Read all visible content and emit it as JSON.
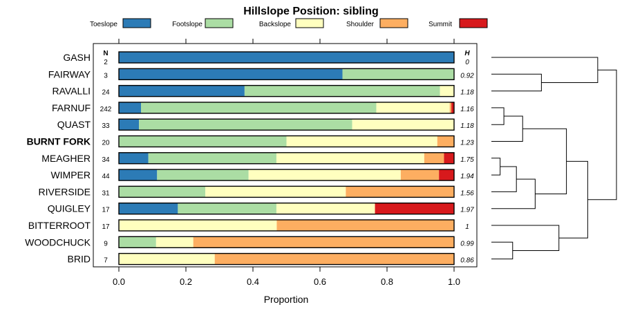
{
  "chart_data": {
    "type": "bar",
    "orientation": "horizontal",
    "stacked": true,
    "title": "Hillslope Position: sibling",
    "xlabel": "Proportion",
    "ylabel": "",
    "xlim": [
      0,
      1
    ],
    "xticks": [
      "0.0",
      "0.2",
      "0.4",
      "0.6",
      "0.8",
      "1.0"
    ],
    "n_header": "N",
    "h_header": "H",
    "highlight": "BURNT FORK",
    "legend": [
      {
        "name": "Toeslope",
        "color": "#2c7bb6"
      },
      {
        "name": "Footslope",
        "color": "#abdda4"
      },
      {
        "name": "Backslope",
        "color": "#ffffbf"
      },
      {
        "name": "Shoulder",
        "color": "#fdae61"
      },
      {
        "name": "Summit",
        "color": "#d7191c"
      }
    ],
    "categories": [
      "GASH",
      "FAIRWAY",
      "RAVALLI",
      "FARNUF",
      "QUAST",
      "BURNT FORK",
      "MEAGHER",
      "WIMPER",
      "RIVERSIDE",
      "QUIGLEY",
      "BITTERROOT",
      "WOODCHUCK",
      "BRID"
    ],
    "n": [
      "2",
      "3",
      "24",
      "242",
      "33",
      "20",
      "34",
      "44",
      "31",
      "17",
      "17",
      "9",
      "7"
    ],
    "h": [
      "0",
      "0.92",
      "1.18",
      "1.16",
      "1.18",
      "1.23",
      "1.75",
      "1.94",
      "1.56",
      "1.97",
      "1",
      "0.99",
      "0.86"
    ],
    "series": [
      {
        "name": "Toeslope",
        "values": [
          1.0,
          0.667,
          0.375,
          0.066,
          0.06,
          0.0,
          0.088,
          0.114,
          0.0,
          0.176,
          0.0,
          0.0,
          0.0
        ]
      },
      {
        "name": "Footslope",
        "values": [
          0.0,
          0.333,
          0.583,
          0.702,
          0.636,
          0.5,
          0.382,
          0.273,
          0.258,
          0.294,
          0.0,
          0.111,
          0.0
        ]
      },
      {
        "name": "Backslope",
        "values": [
          0.0,
          0.0,
          0.042,
          0.219,
          0.304,
          0.45,
          0.441,
          0.454,
          0.419,
          0.294,
          0.471,
          0.111,
          0.286
        ]
      },
      {
        "name": "Shoulder",
        "values": [
          0.0,
          0.0,
          0.0,
          0.005,
          0.0,
          0.05,
          0.059,
          0.114,
          0.323,
          0.0,
          0.529,
          0.778,
          0.714
        ]
      },
      {
        "name": "Summit",
        "values": [
          0.0,
          0.0,
          0.0,
          0.008,
          0.0,
          0.0,
          0.03,
          0.045,
          0.0,
          0.236,
          0.0,
          0.0,
          0.0
        ]
      }
    ],
    "dendrogram": {
      "leaf_order": [
        "GASH",
        "FAIRWAY",
        "RAVALLI",
        "FARNUF",
        "QUAST",
        "BURNT FORK",
        "MEAGHER",
        "WIMPER",
        "RIVERSIDE",
        "QUIGLEY",
        "BITTERROOT",
        "WOODCHUCK",
        "BRID"
      ],
      "merges": [
        {
          "a": "L1",
          "b": "L2",
          "height": 0.4
        },
        {
          "a": "L0",
          "b": "M0",
          "height": 0.85
        },
        {
          "a": "L3",
          "b": "L4",
          "height": 0.1
        },
        {
          "a": "M2",
          "b": "L5",
          "height": 0.25
        },
        {
          "a": "L6",
          "b": "L7",
          "height": 0.07
        },
        {
          "a": "M4",
          "b": "L8",
          "height": 0.2
        },
        {
          "a": "M5",
          "b": "L9",
          "height": 0.35
        },
        {
          "a": "M3",
          "b": "M6",
          "height": 0.6
        },
        {
          "a": "L11",
          "b": "L12",
          "height": 0.17
        },
        {
          "a": "L10",
          "b": "M8",
          "height": 0.54
        },
        {
          "a": "M7",
          "b": "M9",
          "height": 0.77
        },
        {
          "a": "M1",
          "b": "M10",
          "height": 1.0
        }
      ]
    }
  }
}
